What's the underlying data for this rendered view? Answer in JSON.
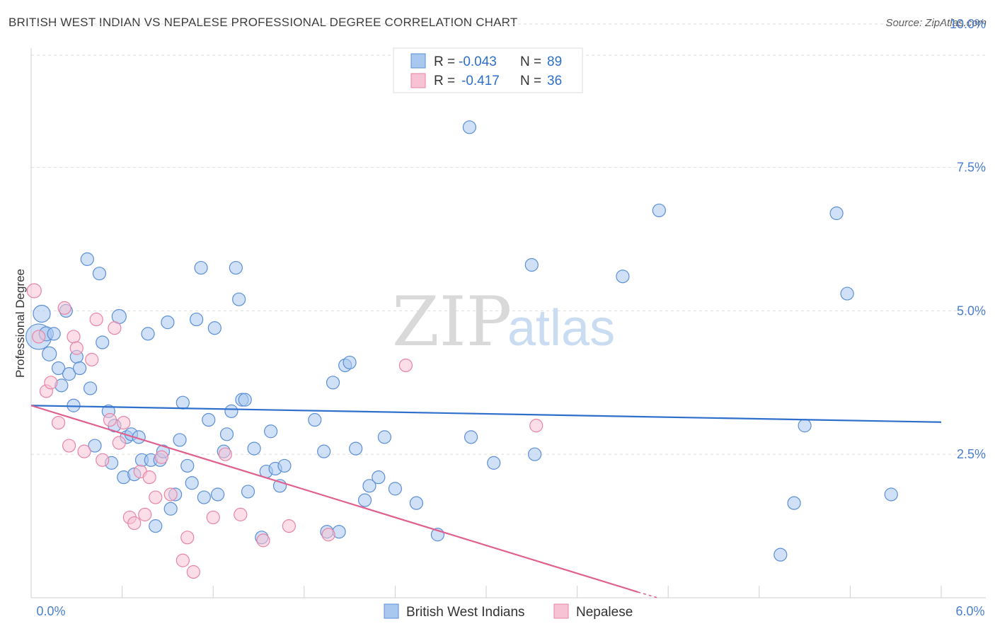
{
  "header": {
    "title": "BRITISH WEST INDIAN VS NEPALESE PROFESSIONAL DEGREE CORRELATION CHART",
    "source": "Source: ZipAtlas.com"
  },
  "watermark": {
    "zip": "ZIP",
    "atlas": "atlas"
  },
  "colors": {
    "blue_fill": "#a9c8f0",
    "blue_stroke": "#5b8fd6",
    "blue_line": "#2f6fcc",
    "pink_fill": "#f7c2d3",
    "pink_stroke": "#e884a6",
    "pink_line": "#e0608e",
    "tick_text": "#4a7fd0",
    "grid": "#dddddd"
  },
  "stats_box": {
    "rows": [
      {
        "r_label": "R =",
        "r_value": "-0.043",
        "n_label": "N =",
        "n_value": "89"
      },
      {
        "r_label": "R =",
        "r_value": "-0.417",
        "n_label": "N =",
        "n_value": "36"
      }
    ]
  },
  "chart_data": {
    "type": "scatter",
    "title": "BRITISH WEST INDIAN VS NEPALESE PROFESSIONAL DEGREE CORRELATION CHART",
    "xlabel": "",
    "ylabel": "Professional Degree",
    "xlim": [
      0,
      6
    ],
    "ylim": [
      0,
      10.2
    ],
    "x_tick_labels": [
      "0.0%",
      "6.0%"
    ],
    "y_ticks": [
      2.5,
      5.0,
      7.5,
      10.0
    ],
    "y_tick_labels": [
      "2.5%",
      "5.0%",
      "7.5%",
      "10.0%"
    ],
    "grid": "horizontal dashed",
    "legend_position": "bottom",
    "series": [
      {
        "name": "British West Indians",
        "color": "#a9c8f0",
        "trend": {
          "x": [
            0,
            6
          ],
          "y": [
            3.35,
            3.06
          ]
        },
        "points": [
          [
            0.05,
            4.55,
            18
          ],
          [
            0.07,
            4.95,
            12
          ],
          [
            0.1,
            4.6,
            10
          ],
          [
            0.12,
            4.25,
            10
          ],
          [
            0.15,
            4.6,
            9
          ],
          [
            0.18,
            4.0,
            9
          ],
          [
            0.2,
            3.7,
            9
          ],
          [
            0.23,
            5.0,
            9
          ],
          [
            0.25,
            3.9,
            9
          ],
          [
            0.28,
            3.35,
            9
          ],
          [
            0.3,
            4.2,
            9
          ],
          [
            0.32,
            4.0,
            9
          ],
          [
            0.37,
            5.9,
            9
          ],
          [
            0.39,
            3.65,
            9
          ],
          [
            0.42,
            2.65,
            9
          ],
          [
            0.45,
            5.65,
            9
          ],
          [
            0.47,
            4.45,
            9
          ],
          [
            0.51,
            3.25,
            9
          ],
          [
            0.53,
            2.35,
            9
          ],
          [
            0.55,
            3.0,
            9
          ],
          [
            0.58,
            4.9,
            10
          ],
          [
            0.61,
            2.1,
            9
          ],
          [
            0.63,
            2.8,
            9
          ],
          [
            0.66,
            2.85,
            9
          ],
          [
            0.68,
            2.15,
            9
          ],
          [
            0.71,
            2.8,
            9
          ],
          [
            0.73,
            2.4,
            9
          ],
          [
            0.77,
            4.6,
            9
          ],
          [
            0.79,
            2.4,
            9
          ],
          [
            0.82,
            1.25,
            9
          ],
          [
            0.85,
            2.4,
            9
          ],
          [
            0.87,
            2.55,
            9
          ],
          [
            0.9,
            4.8,
            9
          ],
          [
            0.92,
            1.55,
            9
          ],
          [
            0.95,
            1.8,
            9
          ],
          [
            0.98,
            2.75,
            9
          ],
          [
            1.0,
            3.4,
            9
          ],
          [
            1.03,
            2.3,
            9
          ],
          [
            1.06,
            2.0,
            9
          ],
          [
            1.09,
            4.85,
            9
          ],
          [
            1.12,
            5.75,
            9
          ],
          [
            1.14,
            1.75,
            9
          ],
          [
            1.17,
            3.1,
            9
          ],
          [
            1.21,
            4.7,
            9
          ],
          [
            1.23,
            1.8,
            9
          ],
          [
            1.27,
            2.55,
            9
          ],
          [
            1.29,
            2.85,
            9
          ],
          [
            1.32,
            3.25,
            9
          ],
          [
            1.35,
            5.75,
            9
          ],
          [
            1.37,
            5.2,
            9
          ],
          [
            1.39,
            3.45,
            9
          ],
          [
            1.41,
            3.45,
            9
          ],
          [
            1.43,
            1.85,
            9
          ],
          [
            1.47,
            2.6,
            9
          ],
          [
            1.52,
            1.05,
            9
          ],
          [
            1.55,
            2.2,
            9
          ],
          [
            1.58,
            2.9,
            9
          ],
          [
            1.61,
            2.25,
            9
          ],
          [
            1.64,
            1.95,
            9
          ],
          [
            1.67,
            2.3,
            9
          ],
          [
            1.87,
            3.1,
            9
          ],
          [
            1.93,
            2.55,
            9
          ],
          [
            1.95,
            1.15,
            9
          ],
          [
            1.99,
            3.75,
            9
          ],
          [
            2.03,
            1.15,
            9
          ],
          [
            2.07,
            4.05,
            9
          ],
          [
            2.1,
            4.1,
            9
          ],
          [
            2.14,
            2.6,
            9
          ],
          [
            2.2,
            1.7,
            9
          ],
          [
            2.23,
            1.95,
            9
          ],
          [
            2.29,
            2.1,
            9
          ],
          [
            2.33,
            2.8,
            9
          ],
          [
            2.4,
            1.9,
            9
          ],
          [
            2.54,
            1.65,
            9
          ],
          [
            2.68,
            1.1,
            9
          ],
          [
            2.89,
            8.2,
            9
          ],
          [
            2.9,
            2.8,
            9
          ],
          [
            3.05,
            2.35,
            9
          ],
          [
            3.3,
            5.8,
            9
          ],
          [
            3.32,
            2.5,
            9
          ],
          [
            3.9,
            5.6,
            9
          ],
          [
            4.14,
            6.75,
            9
          ],
          [
            4.94,
            0.75,
            9
          ],
          [
            5.03,
            1.65,
            9
          ],
          [
            5.1,
            3.0,
            9
          ],
          [
            5.31,
            6.7,
            9
          ],
          [
            5.38,
            5.3,
            9
          ],
          [
            5.67,
            1.8,
            9
          ]
        ]
      },
      {
        "name": "Nepalese",
        "color": "#f7c2d3",
        "trend": {
          "x": [
            0,
            4.0
          ],
          "y": [
            3.35,
            0.1
          ],
          "dashed_tail_to": [
            4.13,
            0.0
          ]
        },
        "points": [
          [
            0.02,
            5.35,
            10
          ],
          [
            0.05,
            4.55,
            9
          ],
          [
            0.1,
            3.6,
            9
          ],
          [
            0.13,
            3.75,
            9
          ],
          [
            0.18,
            3.05,
            9
          ],
          [
            0.22,
            5.05,
            9
          ],
          [
            0.25,
            2.65,
            9
          ],
          [
            0.28,
            4.55,
            9
          ],
          [
            0.3,
            4.35,
            9
          ],
          [
            0.35,
            2.55,
            9
          ],
          [
            0.4,
            4.15,
            9
          ],
          [
            0.43,
            4.85,
            9
          ],
          [
            0.47,
            2.4,
            9
          ],
          [
            0.52,
            3.1,
            9
          ],
          [
            0.55,
            4.7,
            9
          ],
          [
            0.58,
            2.7,
            9
          ],
          [
            0.61,
            3.05,
            9
          ],
          [
            0.65,
            1.4,
            9
          ],
          [
            0.68,
            1.3,
            9
          ],
          [
            0.72,
            2.2,
            9
          ],
          [
            0.75,
            1.45,
            9
          ],
          [
            0.78,
            2.1,
            9
          ],
          [
            0.82,
            1.75,
            9
          ],
          [
            0.86,
            2.45,
            9
          ],
          [
            0.92,
            1.8,
            9
          ],
          [
            1.0,
            0.65,
            9
          ],
          [
            1.03,
            1.05,
            9
          ],
          [
            1.07,
            0.45,
            9
          ],
          [
            1.2,
            1.4,
            9
          ],
          [
            1.28,
            2.5,
            9
          ],
          [
            1.38,
            1.45,
            9
          ],
          [
            1.53,
            1.0,
            9
          ],
          [
            1.7,
            1.25,
            9
          ],
          [
            1.96,
            1.1,
            9
          ],
          [
            2.47,
            4.05,
            9
          ],
          [
            3.33,
            3.0,
            9
          ]
        ]
      }
    ]
  },
  "legend": {
    "items": [
      {
        "label": "British West Indians",
        "color": "#a9c8f0"
      },
      {
        "label": "Nepalese",
        "color": "#f7c2d3"
      }
    ]
  }
}
